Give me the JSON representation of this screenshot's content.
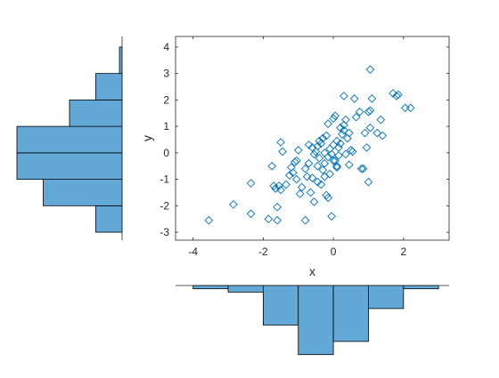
{
  "chart_data": [
    {
      "type": "scatter",
      "xlabel": "x",
      "ylabel": "y",
      "xlim": [
        -4.5,
        3.3
      ],
      "ylim": [
        -3.3,
        4.4
      ],
      "x_ticks": [
        -4,
        -2,
        0,
        2
      ],
      "y_ticks": [
        -3,
        -2,
        -1,
        0,
        1,
        2,
        3,
        4
      ],
      "x_tick_labels": [
        "-4",
        "-2",
        "0",
        "2"
      ],
      "y_tick_labels": [
        "-3",
        "-2",
        "-1",
        "0",
        "1",
        "2",
        "3",
        "4"
      ],
      "marker": "diamond",
      "marker_color": "#0072BD",
      "grid": false,
      "points": [
        [
          -3.55,
          -2.55
        ],
        [
          -2.85,
          -1.95
        ],
        [
          -2.35,
          -2.3
        ],
        [
          -2.35,
          -1.15
        ],
        [
          -1.85,
          -2.5
        ],
        [
          -1.6,
          -2.55
        ],
        [
          -1.6,
          -2.05
        ],
        [
          -1.65,
          -1.35
        ],
        [
          -1.7,
          -1.25
        ],
        [
          -1.55,
          -1.25
        ],
        [
          -1.75,
          -0.5
        ],
        [
          -1.5,
          -1.4
        ],
        [
          -1.45,
          0.05
        ],
        [
          -1.5,
          0.4
        ],
        [
          -1.35,
          -1.2
        ],
        [
          -1.25,
          -0.85
        ],
        [
          -1.15,
          -0.75
        ],
        [
          -1.05,
          -1.0
        ],
        [
          -1.2,
          -0.55
        ],
        [
          -1.1,
          -0.35
        ],
        [
          -1.05,
          -0.3
        ],
        [
          -1.0,
          0.1
        ],
        [
          -0.9,
          -1.3
        ],
        [
          -0.8,
          -0.6
        ],
        [
          -0.75,
          -0.9
        ],
        [
          -0.7,
          -0.4
        ],
        [
          -0.65,
          -1.5
        ],
        [
          -0.55,
          -1.85
        ],
        [
          -0.45,
          -1.1
        ],
        [
          -0.35,
          -1.2
        ],
        [
          -0.8,
          -2.55
        ],
        [
          -0.45,
          -0.5
        ],
        [
          -0.4,
          -0.2
        ],
        [
          -0.3,
          -0.65
        ],
        [
          -0.25,
          -0.4
        ],
        [
          -0.6,
          0.2
        ],
        [
          -0.5,
          0.05
        ],
        [
          -0.45,
          0.25
        ],
        [
          -0.4,
          0.45
        ],
        [
          -0.35,
          0.35
        ],
        [
          -0.3,
          0.55
        ],
        [
          -0.2,
          0.65
        ],
        [
          -0.25,
          0.0
        ],
        [
          -0.15,
          -0.15
        ],
        [
          -0.1,
          0.15
        ],
        [
          -0.05,
          -0.05
        ],
        [
          0.0,
          0.3
        ],
        [
          0.05,
          -0.3
        ],
        [
          0.1,
          -0.55
        ],
        [
          0.15,
          0.2
        ],
        [
          0.2,
          0.35
        ],
        [
          0.25,
          0.7
        ],
        [
          0.3,
          0.85
        ],
        [
          0.35,
          -0.05
        ],
        [
          0.4,
          0.55
        ],
        [
          0.45,
          0.75
        ],
        [
          0.5,
          0.1
        ],
        [
          0.55,
          0.05
        ],
        [
          -0.15,
          -1.7
        ],
        [
          -0.1,
          -0.8
        ],
        [
          0.0,
          -0.3
        ],
        [
          -0.05,
          -2.4
        ],
        [
          0.1,
          0.45
        ],
        [
          -0.15,
          1.1
        ],
        [
          0.0,
          1.3
        ],
        [
          0.05,
          1.4
        ],
        [
          0.2,
          0.95
        ],
        [
          0.3,
          1.05
        ],
        [
          0.35,
          1.25
        ],
        [
          0.3,
          2.15
        ],
        [
          0.6,
          2.05
        ],
        [
          0.65,
          1.35
        ],
        [
          0.75,
          1.55
        ],
        [
          0.8,
          -0.6
        ],
        [
          0.85,
          -0.6
        ],
        [
          0.9,
          0.75
        ],
        [
          0.95,
          0.2
        ],
        [
          1.0,
          -1.1
        ],
        [
          1.0,
          1.55
        ],
        [
          1.05,
          1.6
        ],
        [
          1.05,
          0.95
        ],
        [
          1.1,
          2.05
        ],
        [
          1.05,
          3.15
        ],
        [
          1.25,
          0.75
        ],
        [
          1.35,
          1.25
        ],
        [
          1.4,
          0.65
        ],
        [
          1.7,
          2.25
        ],
        [
          1.8,
          2.15
        ],
        [
          1.85,
          2.2
        ],
        [
          2.05,
          1.7
        ],
        [
          2.2,
          1.7
        ],
        [
          0.1,
          -0.5
        ],
        [
          0.15,
          -0.1
        ],
        [
          -0.55,
          -0.05
        ],
        [
          -0.7,
          0.3
        ],
        [
          -0.25,
          -0.9
        ],
        [
          -0.2,
          -1.6
        ],
        [
          0.45,
          -0.45
        ],
        [
          -0.95,
          -1.55
        ],
        [
          -0.6,
          -0.95
        ]
      ]
    },
    {
      "type": "bar",
      "orientation": "horizontal",
      "description_of_axis": "y histogram",
      "bin_edges": [
        -3,
        -2,
        -1,
        0,
        1,
        2,
        3,
        4
      ],
      "values": [
        1,
        3,
        4,
        4,
        2,
        1,
        0.1
      ],
      "ylim": [
        -3.3,
        4.4
      ],
      "bar_color": "#63A9D8"
    },
    {
      "type": "bar",
      "orientation": "vertical-down",
      "description_of_axis": "x histogram",
      "bin_edges": [
        -4,
        -3,
        -2,
        -1,
        0,
        1,
        2,
        3
      ],
      "values": [
        0.1,
        0.2,
        1.2,
        2.1,
        1.7,
        0.7,
        0.1
      ],
      "xlim": [
        -4.5,
        3.3
      ],
      "bar_color": "#63A9D8"
    }
  ]
}
